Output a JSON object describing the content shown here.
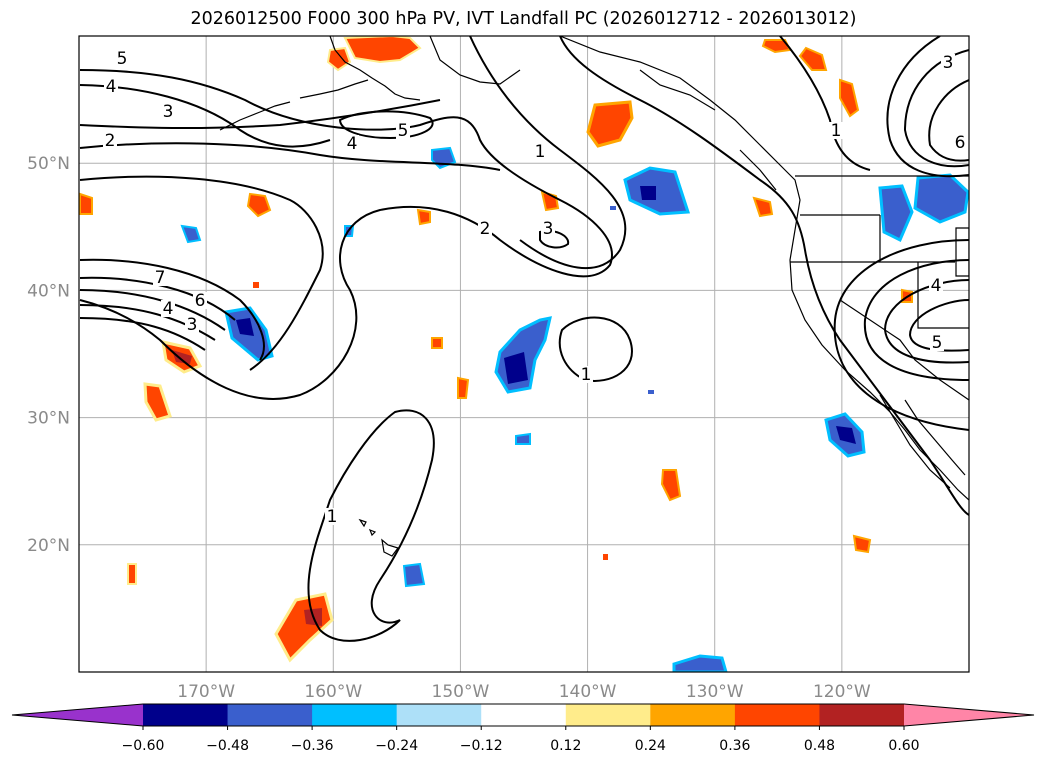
{
  "title": "2026012500 F000 300 hPa PV, IVT Landfall PC (2026012712 - 2026013012)",
  "map": {
    "lat_labels": [
      {
        "value": 50,
        "text": "50°N"
      },
      {
        "value": 40,
        "text": "40°N"
      },
      {
        "value": 30,
        "text": "30°N"
      },
      {
        "value": 20,
        "text": "20°N"
      }
    ],
    "lon_labels": [
      {
        "value": -170,
        "text": "170°W"
      },
      {
        "value": -160,
        "text": "160°W"
      },
      {
        "value": -150,
        "text": "150°W"
      },
      {
        "value": -140,
        "text": "140°W"
      },
      {
        "value": -130,
        "text": "130°W"
      },
      {
        "value": -120,
        "text": "120°W"
      }
    ],
    "extent": {
      "lon_min": -180,
      "lon_max": -110,
      "lat_min": 10,
      "lat_max": 60
    },
    "grid": true,
    "contour_labels": [
      "5",
      "4",
      "3",
      "2",
      "4",
      "5",
      "1",
      "2",
      "3",
      "1",
      "7",
      "6",
      "4",
      "3",
      "1",
      "1",
      "3",
      "6",
      "4",
      "5"
    ]
  },
  "colorbar": {
    "ticks": [
      "−0.60",
      "−0.48",
      "−0.36",
      "−0.24",
      "−0.12",
      "0.12",
      "0.24",
      "0.36",
      "0.48",
      "0.60"
    ],
    "colors": [
      "#9932CC",
      "#00008B",
      "#3A5FCD",
      "#00BFFF",
      "#ADE0F8",
      "#FFFFFF",
      "#FFEC8B",
      "#FFA500",
      "#FF4500",
      "#B22222",
      "#FF85A7"
    ]
  }
}
